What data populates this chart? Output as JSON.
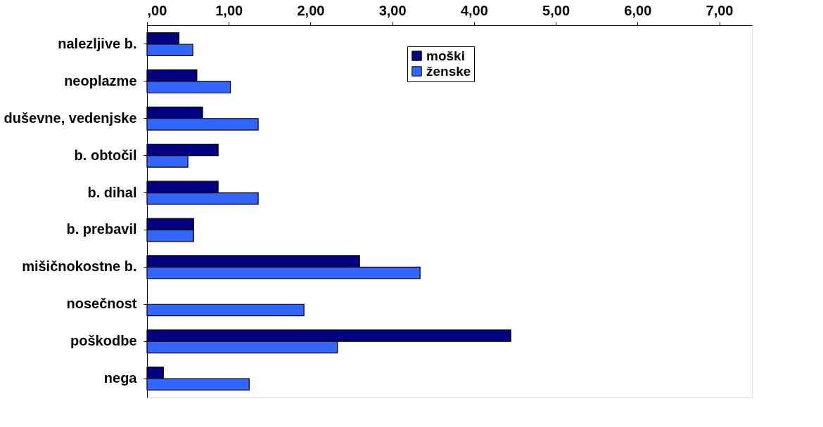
{
  "chart_data": {
    "type": "bar",
    "orientation": "horizontal",
    "categories": [
      "nalezljive b.",
      "neoplazme",
      "duševne, vedenjske",
      "b. obtočil",
      "b. dihal",
      "b. prebavil",
      "mišičnokostne b.",
      "nosečnost",
      "poškodbe",
      "nega"
    ],
    "series": [
      {
        "name": "moški",
        "color": "#000080",
        "values": [
          0.39,
          0.61,
          0.68,
          0.87,
          0.87,
          0.57,
          2.6,
          null,
          4.45,
          0.2
        ]
      },
      {
        "name": "ženske",
        "color": "#3366ff",
        "values": [
          0.56,
          1.02,
          1.36,
          0.5,
          1.36,
          0.57,
          3.34,
          1.92,
          2.33,
          1.25
        ]
      }
    ],
    "xlim": [
      0,
      7.4
    ],
    "xticks": [
      {
        "value": 0,
        "label": ",00"
      },
      {
        "value": 1,
        "label": "1,00"
      },
      {
        "value": 2,
        "label": "2,00"
      },
      {
        "value": 3,
        "label": "3,00"
      },
      {
        "value": 4,
        "label": "4,00"
      },
      {
        "value": 5,
        "label": "5,00"
      },
      {
        "value": 6,
        "label": "6,00"
      },
      {
        "value": 7,
        "label": "7,00"
      }
    ],
    "grid": false,
    "legend": "top"
  }
}
